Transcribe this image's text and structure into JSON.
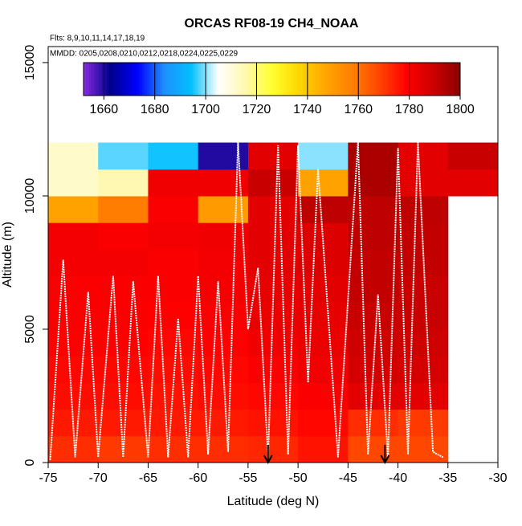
{
  "chart_data": {
    "type": "heatmap",
    "title": "ORCAS RF08-19 CH4_NOAA",
    "flights_note": "Flts: 8,9,10,11,14,17,18,19",
    "dates_note": "MMDD: 0205,0208,0210,0212,0218,0224,0225,0229",
    "x_label": "Latitude (deg N)",
    "y_label": "Altitude (m)",
    "xlim": [
      -75,
      -30
    ],
    "xticks": [
      -75,
      -70,
      -65,
      -60,
      -55,
      -50,
      -45,
      -40,
      -35,
      -30
    ],
    "ylim": [
      0,
      15600
    ],
    "yticks": [
      0,
      5000,
      10000,
      15000
    ],
    "x_edges": [
      -75,
      -70,
      -65,
      -60,
      -55,
      -50,
      -45,
      -40,
      -35,
      -30
    ],
    "y_edges": [
      0,
      1000,
      2000,
      3000,
      4000,
      5000,
      6000,
      7000,
      8000,
      9000,
      10000,
      11000,
      12000
    ],
    "values": [
      [
        1772,
        1770,
        1772,
        1772,
        1773,
        1776,
        1768,
        1768,
        null
      ],
      [
        1775,
        1775,
        1775,
        1775,
        1776,
        1778,
        1772,
        1770,
        null
      ],
      [
        1777,
        1777,
        1776,
        1777,
        1778,
        1780,
        1785,
        1785,
        null
      ],
      [
        1778,
        1778,
        1777,
        1778,
        1780,
        1782,
        1788,
        1788,
        null
      ],
      [
        1779,
        1779,
        1778,
        1779,
        1782,
        1783,
        1789,
        1789,
        null
      ],
      [
        1780,
        1780,
        1779,
        1780,
        1783,
        1784,
        1790,
        1790,
        null
      ],
      [
        1780,
        1780,
        1780,
        1781,
        1784,
        1785,
        1791,
        1790,
        null
      ],
      [
        1781,
        1781,
        1780,
        1781,
        1785,
        1786,
        1791,
        1791,
        null
      ],
      [
        1781,
        1780,
        1781,
        1782,
        1785,
        1786,
        1792,
        1791,
        null
      ],
      [
        1748,
        1758,
        1780,
        1750,
        1785,
        1792,
        1792,
        1792,
        null
      ],
      [
        1712,
        1715,
        1782,
        1782,
        1790,
        1748,
        1795,
        1785,
        1785
      ],
      [
        1712,
        1698,
        1695,
        1660,
        1785,
        1700,
        1795,
        1785,
        1790
      ]
    ],
    "zlim": [
      1652,
      1800
    ],
    "zticks": [
      1660,
      1680,
      1700,
      1720,
      1740,
      1760,
      1780,
      1800
    ],
    "colors": [
      "#8a2be2",
      "#00008b",
      "#0000ff",
      "#1e90ff",
      "#00bfff",
      "#ffffff",
      "#fff8b0",
      "#ffff30",
      "#ffd700",
      "#ffa500",
      "#ff7f00",
      "#ff4500",
      "#ff0000",
      "#cd0000",
      "#8b0000"
    ],
    "track": {
      "color": "#ffffff",
      "x": [
        -74.8,
        -73.5,
        -72.3,
        -71,
        -70,
        -68.5,
        -67.5,
        -66.5,
        -65,
        -64,
        -63,
        -62,
        -61,
        -60,
        -59,
        -58,
        -57,
        -56,
        -55,
        -54,
        -53,
        -52,
        -51,
        -50,
        -49,
        -48,
        -46,
        -44,
        -43,
        -42,
        -41,
        -40,
        -39,
        -38,
        -36.5,
        -35.5
      ],
      "y": [
        100,
        7600,
        200,
        6400,
        200,
        7000,
        200,
        6800,
        200,
        7000,
        200,
        5400,
        200,
        7000,
        300,
        6800,
        400,
        12000,
        5000,
        7300,
        200,
        11900,
        300,
        11900,
        3000,
        11000,
        200,
        12000,
        300,
        6300,
        200,
        11800,
        300,
        12000,
        400,
        200
      ]
    },
    "arrows": [
      -53,
      -41.3
    ]
  }
}
